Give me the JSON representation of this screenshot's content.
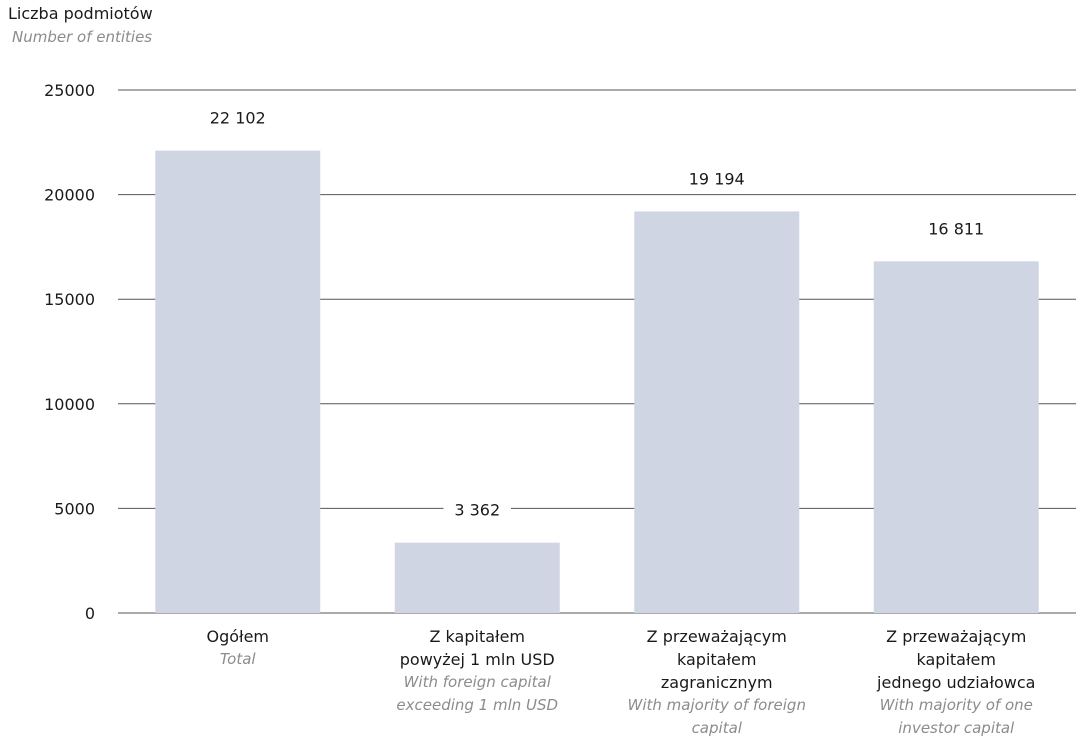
{
  "chart_data": {
    "type": "bar",
    "ylabel_pl": "Liczba podmiotów",
    "ylabel_en": "Number of entities",
    "ylim": [
      0,
      25000
    ],
    "yticks": [
      0,
      5000,
      10000,
      15000,
      20000,
      25000
    ],
    "grid": true,
    "bar_color": "#cfd5e2",
    "categories": [
      {
        "label_pl": "Ogółem",
        "label_en": "Total"
      },
      {
        "label_pl": "Z kapitałem\npowyżej 1 mln USD",
        "label_en": "With foreign capital\nexceeding 1 mln USD"
      },
      {
        "label_pl": "Z przeważającym\nkapitałem\nzagranicznym",
        "label_en": "With majority of foreign\ncapital"
      },
      {
        "label_pl": "Z przeważającym\nkapitałem\njednego udziałowca",
        "label_en": "With majority of one\ninvestor capital"
      }
    ],
    "values": [
      22102,
      3362,
      19194,
      16811
    ],
    "value_labels": [
      "22 102",
      "3 362",
      "19 194",
      "16 811"
    ]
  }
}
